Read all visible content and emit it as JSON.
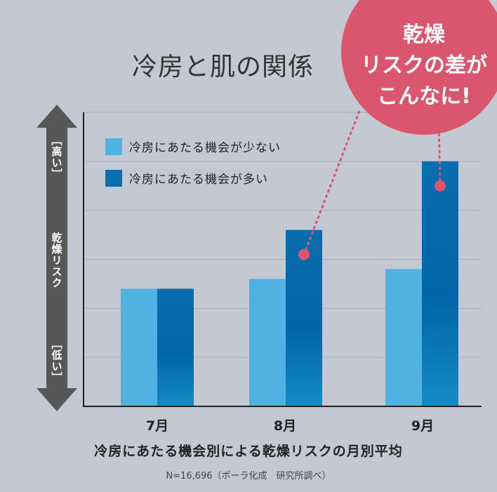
{
  "title": "冷房と肌の関係",
  "callout": {
    "lines": [
      "乾燥",
      "リスクの差が",
      "こんなに!"
    ]
  },
  "y_axis": {
    "high_label": "［高い］",
    "mid_label": "乾燥リスク",
    "low_label": "［低い］"
  },
  "legend": [
    {
      "label": "冷房にあたる機会が少ない",
      "color": "#50b2e0"
    },
    {
      "label": "冷房にあたる機会が多い",
      "color": "#0a6dad"
    }
  ],
  "subtitle": "冷房にあたる機会別による乾燥リスクの月別平均",
  "note": "N=16,696（ポーラ化成　研究所調べ）",
  "colors": {
    "background": "#c3c8d2",
    "callout": "#da566f",
    "arrow": "#575757"
  },
  "chart_data": {
    "type": "bar",
    "categories": [
      "7月",
      "8月",
      "9月"
    ],
    "series": [
      {
        "name": "冷房にあたる機会が少ない",
        "values": [
          2.4,
          2.6,
          2.8
        ],
        "color": "#50b2e0"
      },
      {
        "name": "冷房にあたる機会が多い",
        "values": [
          2.4,
          3.6,
          5.0
        ],
        "color": "#0a6dad"
      }
    ],
    "ylim": [
      0,
      6
    ],
    "grid": true,
    "highlight_series_index": 1,
    "highlight_categories": [
      1,
      2
    ]
  }
}
